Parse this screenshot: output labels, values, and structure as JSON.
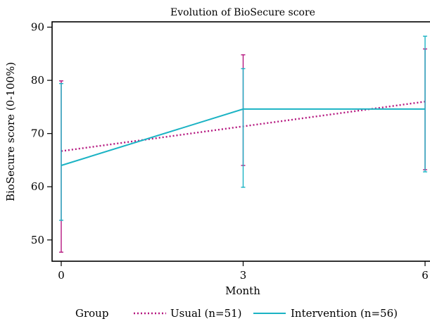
{
  "chart_data": {
    "type": "line",
    "title": "Evolution of BioSecure score",
    "xlabel": "Month",
    "ylabel": "BioSecure score (0-100%)",
    "x": [
      0,
      3,
      6
    ],
    "x_ticks": [
      "0",
      "3",
      "6"
    ],
    "xlim": [
      0,
      6
    ],
    "y_ticks": [
      "50",
      "60",
      "70",
      "80",
      "90"
    ],
    "ylim": [
      46,
      91
    ],
    "grid": false,
    "legend": {
      "title": "Group",
      "placement": "bottom"
    },
    "series": [
      {
        "name": "Usual (n=51)",
        "color": "#b5177f",
        "line_style": "dotted",
        "trend_endpoints": [
          66.7,
          76.0
        ],
        "means": [
          66.7,
          71.3,
          76.0
        ],
        "ci_lower": [
          47.7,
          64.0,
          63.2
        ],
        "ci_upper": [
          79.9,
          84.8,
          85.9
        ]
      },
      {
        "name": "Intervention (n=56)",
        "color": "#1bb3c4",
        "line_style": "solid",
        "means": [
          64.0,
          74.6,
          74.6
        ],
        "ci_lower": [
          53.7,
          59.9,
          62.8
        ],
        "ci_upper": [
          79.4,
          82.2,
          88.3
        ]
      }
    ]
  }
}
